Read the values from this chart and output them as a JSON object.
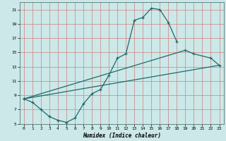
{
  "xlabel": "Humidex (Indice chaleur)",
  "bg_color": "#cce8e8",
  "grid_color": "#d08080",
  "line_color": "#1a6b6b",
  "line1_x": [
    0,
    1,
    2,
    3,
    4,
    5,
    6,
    7,
    8,
    9,
    10,
    11,
    12,
    13,
    14,
    15,
    16,
    17,
    18
  ],
  "line1_y": [
    8.5,
    8.0,
    7.0,
    6.0,
    5.5,
    5.2,
    5.8,
    7.8,
    9.2,
    9.8,
    11.8,
    14.2,
    14.8,
    19.5,
    19.9,
    21.2,
    21.0,
    19.2,
    16.5
  ],
  "line2_x": [
    0,
    19,
    20,
    22,
    23
  ],
  "line2_y": [
    8.5,
    15.3,
    14.8,
    14.2,
    13.2
  ],
  "line3_x": [
    0,
    23
  ],
  "line3_y": [
    8.5,
    13.2
  ],
  "ylim": [
    5,
    22
  ],
  "xlim": [
    -0.5,
    23.5
  ],
  "yticks": [
    5,
    7,
    9,
    11,
    13,
    15,
    17,
    19,
    21
  ],
  "xticks": [
    0,
    1,
    2,
    3,
    4,
    5,
    6,
    7,
    8,
    9,
    10,
    11,
    12,
    13,
    14,
    15,
    16,
    17,
    18,
    19,
    20,
    21,
    22,
    23
  ],
  "xlabel_fontsize": 5.5,
  "tick_fontsize": 4.5,
  "linewidth": 0.9,
  "markersize": 3.5,
  "markeredgewidth": 0.9
}
